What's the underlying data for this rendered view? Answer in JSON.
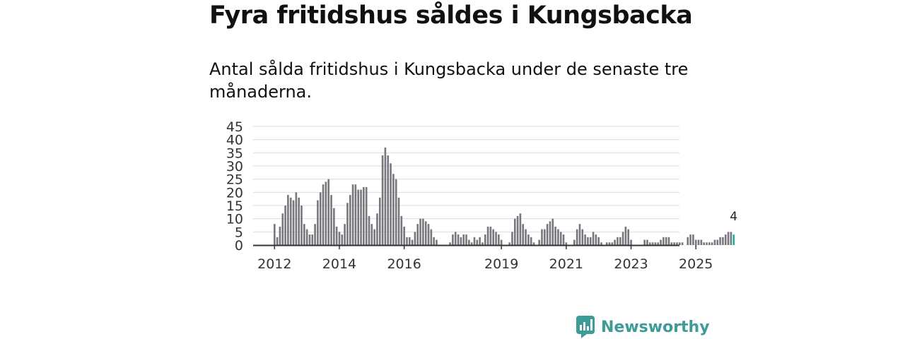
{
  "header": {
    "title": "Fyra fritidshus såldes i Kungsbacka",
    "subtitle": "Antal sålda fritidshus i Kungsbacka under de senaste tre månaderna."
  },
  "brand": {
    "name": "Newsworthy",
    "color": "#3d9c98"
  },
  "chart_data": {
    "type": "bar",
    "title": "Fyra fritidshus såldes i Kungsbacka",
    "xlabel": "",
    "ylabel": "",
    "ylim": [
      0,
      45
    ],
    "yticks": [
      0,
      5,
      10,
      15,
      20,
      25,
      30,
      35,
      40,
      45
    ],
    "xtick_labels": [
      "2012",
      "2014",
      "2016",
      "2019",
      "2021",
      "2023",
      "2025"
    ],
    "grid": true,
    "bar_color": "#77777d",
    "highlight_color": "#1fb3a5",
    "start": "2012-01",
    "frequency": "monthly",
    "values": [
      8,
      3,
      7,
      12,
      15,
      19,
      18,
      17,
      20,
      18,
      15,
      8,
      6,
      4,
      4,
      8,
      17,
      20,
      23,
      24,
      25,
      19,
      14,
      7,
      5,
      4,
      8,
      16,
      19,
      23,
      23,
      21,
      21,
      22,
      22,
      11,
      8,
      6,
      12,
      18,
      34,
      37,
      34,
      31,
      27,
      25,
      18,
      11,
      7,
      3,
      3,
      2,
      5,
      8,
      10,
      10,
      9,
      8,
      6,
      3,
      2,
      0,
      0,
      0,
      0,
      1,
      4,
      5,
      4,
      3,
      4,
      4,
      2,
      1,
      3,
      2,
      3,
      1,
      4,
      7,
      7,
      6,
      5,
      4,
      2,
      0,
      0,
      1,
      5,
      10,
      11,
      12,
      8,
      6,
      4,
      3,
      1,
      0,
      2,
      6,
      6,
      8,
      9,
      10,
      7,
      6,
      5,
      4,
      1,
      0,
      0,
      2,
      6,
      8,
      6,
      4,
      3,
      3,
      5,
      4,
      3,
      1,
      0,
      1,
      1,
      1,
      2,
      3,
      3,
      5,
      7,
      6,
      2,
      0,
      0,
      0,
      0,
      2,
      2,
      1,
      1,
      1,
      1,
      2,
      3,
      3,
      3,
      1,
      1,
      1,
      1,
      1,
      0,
      3,
      4,
      4,
      2,
      2,
      2,
      1,
      1,
      1,
      1,
      2,
      2,
      3,
      3,
      4,
      5,
      5,
      4
    ],
    "highlight_last": 1,
    "annotation": "4"
  }
}
